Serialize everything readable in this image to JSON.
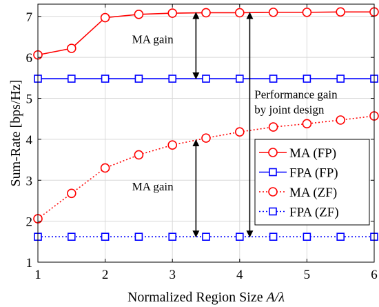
{
  "chart_data": {
    "type": "line",
    "title": "",
    "xlabel_main": "Normalized Region Size ",
    "xlabel_var": "A/λ",
    "ylabel": "Sum-Rate [bps/Hz]",
    "xlim": [
      1,
      6
    ],
    "ylim": [
      1,
      7.3
    ],
    "xticks": [
      1,
      2,
      3,
      4,
      5,
      6
    ],
    "yticks": [
      1,
      2,
      3,
      4,
      5,
      6,
      7
    ],
    "grid": true,
    "legend_position": "bottom-right",
    "x": [
      1,
      1.5,
      2,
      2.5,
      3,
      3.5,
      4,
      4.5,
      5,
      5.5,
      6
    ],
    "series": [
      {
        "name": "MA (FP)",
        "color": "#ff0000",
        "line": "solid",
        "marker": "circle",
        "values": [
          6.06,
          6.22,
          6.97,
          7.05,
          7.08,
          7.09,
          7.09,
          7.1,
          7.1,
          7.11,
          7.11
        ]
      },
      {
        "name": "FPA (FP)",
        "color": "#0000ff",
        "line": "solid",
        "marker": "square",
        "values": [
          5.48,
          5.48,
          5.48,
          5.48,
          5.48,
          5.48,
          5.48,
          5.48,
          5.48,
          5.48,
          5.48
        ]
      },
      {
        "name": "MA (ZF)",
        "color": "#ff0000",
        "line": "dotted",
        "marker": "circle",
        "values": [
          2.06,
          2.68,
          3.3,
          3.62,
          3.86,
          4.03,
          4.18,
          4.3,
          4.38,
          4.47,
          4.57
        ]
      },
      {
        "name": "FPA (ZF)",
        "color": "#0000ff",
        "line": "dotted",
        "marker": "square",
        "values": [
          1.62,
          1.62,
          1.62,
          1.62,
          1.62,
          1.62,
          1.62,
          1.62,
          1.62,
          1.62,
          1.62
        ]
      }
    ],
    "annotations": [
      {
        "label": "MA gain",
        "arrow_x": 3.35,
        "arrow_from": 5.48,
        "arrow_to": 7.09,
        "text_x": 2.4,
        "text_y": 6.35
      },
      {
        "label": "MA gain",
        "arrow_x": 3.35,
        "arrow_from": 1.62,
        "arrow_to": 3.98,
        "text_x": 2.4,
        "text_y": 2.75
      },
      {
        "label_lines": [
          "Performance gain",
          "by joint design"
        ],
        "arrow_x": 4.15,
        "arrow_from": 1.62,
        "arrow_to": 7.09,
        "text_x": 4.22,
        "text_y": 5.0
      }
    ]
  }
}
